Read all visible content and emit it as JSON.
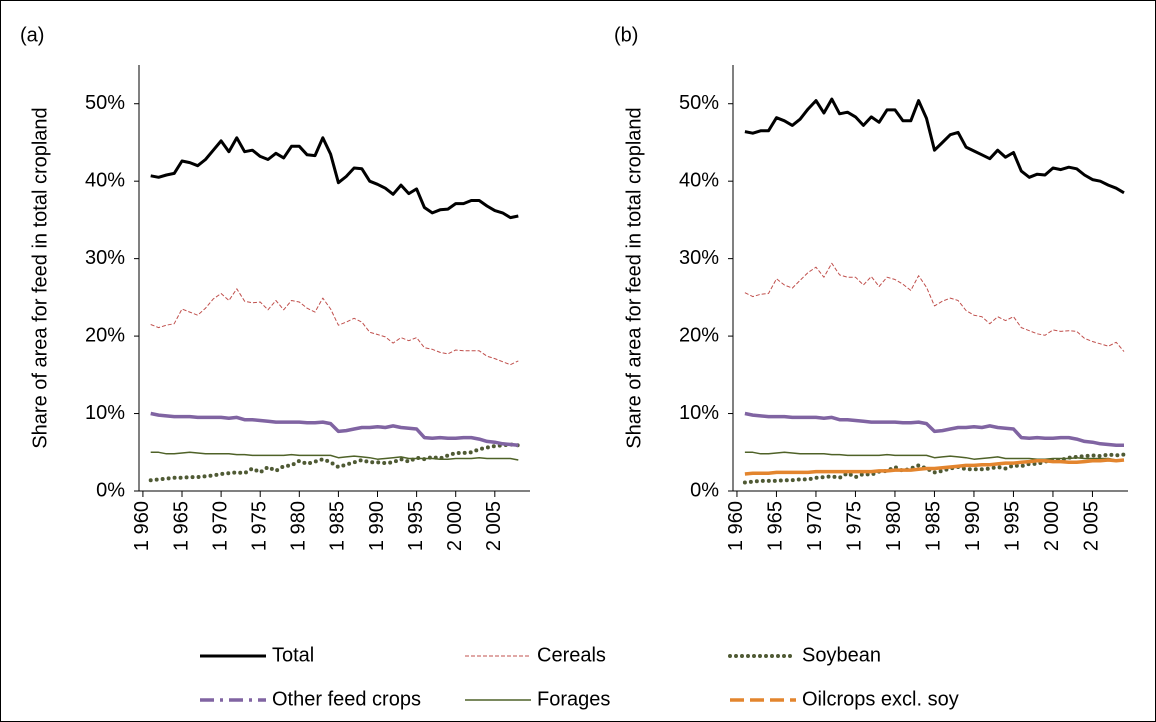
{
  "chart_data": [
    {
      "type": "line",
      "panel_label": "(a)",
      "ylabel": "Share of area for feed in total cropland",
      "xlim": [
        1959.5,
        2009.5
      ],
      "ylim": [
        0,
        55
      ],
      "xticks": [
        {
          "value": 1960,
          "label": "1 960"
        },
        {
          "value": 1965,
          "label": "1 965"
        },
        {
          "value": 1970,
          "label": "1 970"
        },
        {
          "value": 1975,
          "label": "1 975"
        },
        {
          "value": 1980,
          "label": "1 980"
        },
        {
          "value": 1985,
          "label": "1 985"
        },
        {
          "value": 1990,
          "label": "1 990"
        },
        {
          "value": 1995,
          "label": "1 995"
        },
        {
          "value": 2000,
          "label": "2 000"
        },
        {
          "value": 2005,
          "label": "2 005"
        }
      ],
      "yticks": [
        {
          "value": 0,
          "label": "0%"
        },
        {
          "value": 10,
          "label": "10%"
        },
        {
          "value": 20,
          "label": "20%"
        },
        {
          "value": 30,
          "label": "30%"
        },
        {
          "value": 40,
          "label": "40%"
        },
        {
          "value": 50,
          "label": "50%"
        }
      ],
      "x": [
        1961,
        1962,
        1963,
        1964,
        1965,
        1966,
        1967,
        1968,
        1969,
        1970,
        1971,
        1972,
        1973,
        1974,
        1975,
        1976,
        1977,
        1978,
        1979,
        1980,
        1981,
        1982,
        1983,
        1984,
        1985,
        1986,
        1987,
        1988,
        1989,
        1990,
        1991,
        1992,
        1993,
        1994,
        1995,
        1996,
        1997,
        1998,
        1999,
        2000,
        2001,
        2002,
        2003,
        2004,
        2005,
        2006,
        2007,
        2008
      ],
      "series": [
        {
          "name": "Total",
          "color": "#000000",
          "style": "solid",
          "values": [
            40.7,
            40.5,
            40.8,
            41.0,
            42.6,
            42.4,
            42.0,
            42.8,
            44.0,
            45.2,
            43.8,
            45.6,
            43.8,
            44.0,
            43.2,
            42.8,
            43.6,
            43.0,
            44.5,
            44.5,
            43.4,
            43.3,
            45.6,
            43.5,
            39.8,
            40.6,
            41.7,
            41.6,
            40.0,
            39.6,
            39.1,
            38.3,
            39.5,
            38.4,
            39.0,
            36.6,
            35.9,
            36.3,
            36.4,
            37.1,
            37.1,
            37.5,
            37.5,
            36.8,
            36.2,
            35.9,
            35.3,
            35.5
          ]
        },
        {
          "name": "Cereals",
          "color": "#c0504d",
          "style": "dashed",
          "values": [
            21.5,
            21.1,
            21.4,
            21.6,
            23.5,
            23.1,
            22.7,
            23.6,
            24.8,
            25.5,
            24.6,
            26.1,
            24.5,
            24.3,
            24.4,
            23.4,
            24.6,
            23.4,
            24.6,
            24.4,
            23.6,
            23.1,
            24.9,
            23.5,
            21.4,
            21.8,
            22.3,
            21.8,
            20.5,
            20.2,
            19.9,
            19.1,
            19.8,
            19.4,
            19.8,
            18.5,
            18.3,
            17.9,
            17.7,
            18.2,
            18.1,
            18.1,
            18.1,
            17.4,
            17.1,
            16.7,
            16.3,
            16.8
          ]
        },
        {
          "name": "Soybean",
          "color": "#4f5a34",
          "style": "dotted",
          "values": [
            1.4,
            1.5,
            1.6,
            1.7,
            1.7,
            1.8,
            1.8,
            1.9,
            2.0,
            2.2,
            2.3,
            2.4,
            2.3,
            2.9,
            2.4,
            3.1,
            2.6,
            3.2,
            3.3,
            3.9,
            3.5,
            3.8,
            4.1,
            3.7,
            3.1,
            3.4,
            3.7,
            4.0,
            3.7,
            3.7,
            3.6,
            3.7,
            4.1,
            3.8,
            4.3,
            4.1,
            4.4,
            4.2,
            4.6,
            4.9,
            4.9,
            5.0,
            5.4,
            5.6,
            5.8,
            5.9,
            6.0,
            5.9
          ]
        },
        {
          "name": "Other feed crops",
          "color": "#8064a2",
          "style": "dashdot",
          "values": [
            10.0,
            9.8,
            9.7,
            9.6,
            9.6,
            9.6,
            9.5,
            9.5,
            9.5,
            9.5,
            9.4,
            9.5,
            9.2,
            9.2,
            9.1,
            9.0,
            8.9,
            8.9,
            8.9,
            8.9,
            8.8,
            8.8,
            8.9,
            8.7,
            7.7,
            7.8,
            8.0,
            8.2,
            8.2,
            8.3,
            8.2,
            8.4,
            8.2,
            8.1,
            8.0,
            6.9,
            6.8,
            6.9,
            6.8,
            6.8,
            6.9,
            6.9,
            6.7,
            6.4,
            6.3,
            6.1,
            6.0,
            5.9
          ]
        },
        {
          "name": "Forages",
          "color": "#4f6228",
          "style": "thin",
          "values": [
            5.0,
            5.0,
            4.8,
            4.8,
            4.9,
            5.0,
            4.9,
            4.8,
            4.8,
            4.8,
            4.8,
            4.7,
            4.7,
            4.6,
            4.6,
            4.6,
            4.6,
            4.6,
            4.7,
            4.6,
            4.6,
            4.6,
            4.6,
            4.6,
            4.3,
            4.4,
            4.5,
            4.4,
            4.3,
            4.1,
            4.2,
            4.3,
            4.4,
            4.2,
            4.2,
            4.2,
            4.2,
            4.1,
            4.1,
            4.2,
            4.2,
            4.2,
            4.3,
            4.2,
            4.2,
            4.2,
            4.2,
            4.0
          ]
        }
      ]
    },
    {
      "type": "line",
      "panel_label": "(b)",
      "ylabel": "Share of area for feed in total cropland",
      "xlim": [
        1959.5,
        2009.5
      ],
      "ylim": [
        0,
        55
      ],
      "xticks": [
        {
          "value": 1960,
          "label": "1 960"
        },
        {
          "value": 1965,
          "label": "1 965"
        },
        {
          "value": 1970,
          "label": "1 970"
        },
        {
          "value": 1975,
          "label": "1 975"
        },
        {
          "value": 1980,
          "label": "1 980"
        },
        {
          "value": 1985,
          "label": "1 985"
        },
        {
          "value": 1990,
          "label": "1 990"
        },
        {
          "value": 1995,
          "label": "1 995"
        },
        {
          "value": 2000,
          "label": "2 000"
        },
        {
          "value": 2005,
          "label": "2 005"
        }
      ],
      "yticks": [
        {
          "value": 0,
          "label": "0%"
        },
        {
          "value": 10,
          "label": "10%"
        },
        {
          "value": 20,
          "label": "20%"
        },
        {
          "value": 30,
          "label": "30%"
        },
        {
          "value": 40,
          "label": "40%"
        },
        {
          "value": 50,
          "label": "50%"
        }
      ],
      "x": [
        1961,
        1962,
        1963,
        1964,
        1965,
        1966,
        1967,
        1968,
        1969,
        1970,
        1971,
        1972,
        1973,
        1974,
        1975,
        1976,
        1977,
        1978,
        1979,
        1980,
        1981,
        1982,
        1983,
        1984,
        1985,
        1986,
        1987,
        1988,
        1989,
        1990,
        1991,
        1992,
        1993,
        1994,
        1995,
        1996,
        1997,
        1998,
        1999,
        2000,
        2001,
        2002,
        2003,
        2004,
        2005,
        2006,
        2007,
        2008,
        2009
      ],
      "series": [
        {
          "name": "Total",
          "color": "#000000",
          "style": "solid",
          "values": [
            46.4,
            46.2,
            46.5,
            46.5,
            48.2,
            47.8,
            47.2,
            48.0,
            49.3,
            50.4,
            48.8,
            50.6,
            48.7,
            48.9,
            48.3,
            47.2,
            48.3,
            47.6,
            49.2,
            49.2,
            47.8,
            47.8,
            50.4,
            48.1,
            44.0,
            45.0,
            46.0,
            46.3,
            44.4,
            43.9,
            43.4,
            42.9,
            44.0,
            43.1,
            43.7,
            41.3,
            40.5,
            40.9,
            40.8,
            41.7,
            41.5,
            41.8,
            41.6,
            40.8,
            40.2,
            40.0,
            39.5,
            39.1,
            38.5
          ]
        },
        {
          "name": "Cereals",
          "color": "#c0504d",
          "style": "dashed",
          "values": [
            25.6,
            25.1,
            25.4,
            25.5,
            27.4,
            26.6,
            26.2,
            27.2,
            28.2,
            28.9,
            27.6,
            29.4,
            27.9,
            27.6,
            27.6,
            26.6,
            27.7,
            26.4,
            27.6,
            27.3,
            26.7,
            25.9,
            27.8,
            26.3,
            23.9,
            24.5,
            24.9,
            24.6,
            23.3,
            22.7,
            22.5,
            21.6,
            22.5,
            22.0,
            22.5,
            21.1,
            20.7,
            20.3,
            20.1,
            20.8,
            20.6,
            20.7,
            20.6,
            19.7,
            19.3,
            19.0,
            18.7,
            19.2,
            18.0
          ]
        },
        {
          "name": "Soybean",
          "color": "#4f5a34",
          "style": "dotted",
          "values": [
            1.1,
            1.2,
            1.3,
            1.3,
            1.3,
            1.4,
            1.4,
            1.5,
            1.5,
            1.7,
            1.8,
            1.9,
            1.7,
            2.3,
            1.8,
            2.2,
            2.1,
            2.5,
            2.6,
            3.1,
            2.6,
            2.9,
            3.3,
            2.9,
            2.4,
            2.6,
            2.9,
            3.1,
            2.8,
            2.8,
            2.8,
            2.9,
            3.1,
            2.9,
            3.3,
            3.2,
            3.5,
            3.5,
            3.8,
            4.0,
            4.0,
            4.3,
            4.4,
            4.5,
            4.6,
            4.5,
            4.7,
            4.6,
            4.7
          ]
        },
        {
          "name": "Other feed crops",
          "color": "#8064a2",
          "style": "dashdot",
          "values": [
            10.0,
            9.8,
            9.7,
            9.6,
            9.6,
            9.6,
            9.5,
            9.5,
            9.5,
            9.5,
            9.4,
            9.5,
            9.2,
            9.2,
            9.1,
            9.0,
            8.9,
            8.9,
            8.9,
            8.9,
            8.8,
            8.8,
            8.9,
            8.7,
            7.7,
            7.8,
            8.0,
            8.2,
            8.2,
            8.3,
            8.2,
            8.4,
            8.2,
            8.1,
            8.0,
            6.9,
            6.8,
            6.9,
            6.8,
            6.8,
            6.9,
            6.9,
            6.7,
            6.4,
            6.3,
            6.1,
            6.0,
            5.9,
            5.9
          ]
        },
        {
          "name": "Forages",
          "color": "#4f6228",
          "style": "thin",
          "values": [
            5.0,
            5.0,
            4.8,
            4.8,
            4.9,
            5.0,
            4.9,
            4.8,
            4.8,
            4.8,
            4.8,
            4.7,
            4.7,
            4.6,
            4.6,
            4.6,
            4.6,
            4.6,
            4.7,
            4.6,
            4.6,
            4.6,
            4.6,
            4.6,
            4.3,
            4.4,
            4.5,
            4.4,
            4.3,
            4.1,
            4.2,
            4.3,
            4.4,
            4.2,
            4.2,
            4.2,
            4.2,
            4.1,
            4.1,
            4.2,
            4.2,
            4.2,
            4.3,
            4.2,
            4.2,
            4.2,
            4.2,
            4.0,
            4.0
          ]
        },
        {
          "name": "Oilcrops excl. soy",
          "color": "#e3852e",
          "style": "longdash",
          "values": [
            2.2,
            2.3,
            2.3,
            2.3,
            2.4,
            2.4,
            2.4,
            2.4,
            2.4,
            2.5,
            2.5,
            2.5,
            2.5,
            2.5,
            2.5,
            2.5,
            2.5,
            2.6,
            2.6,
            2.7,
            2.7,
            2.7,
            2.8,
            2.9,
            2.9,
            3.0,
            3.1,
            3.2,
            3.3,
            3.3,
            3.4,
            3.4,
            3.5,
            3.6,
            3.6,
            3.7,
            3.8,
            3.9,
            3.9,
            3.8,
            3.8,
            3.7,
            3.7,
            3.8,
            3.9,
            3.9,
            4.0,
            3.9,
            4.0
          ]
        }
      ]
    }
  ]
}
